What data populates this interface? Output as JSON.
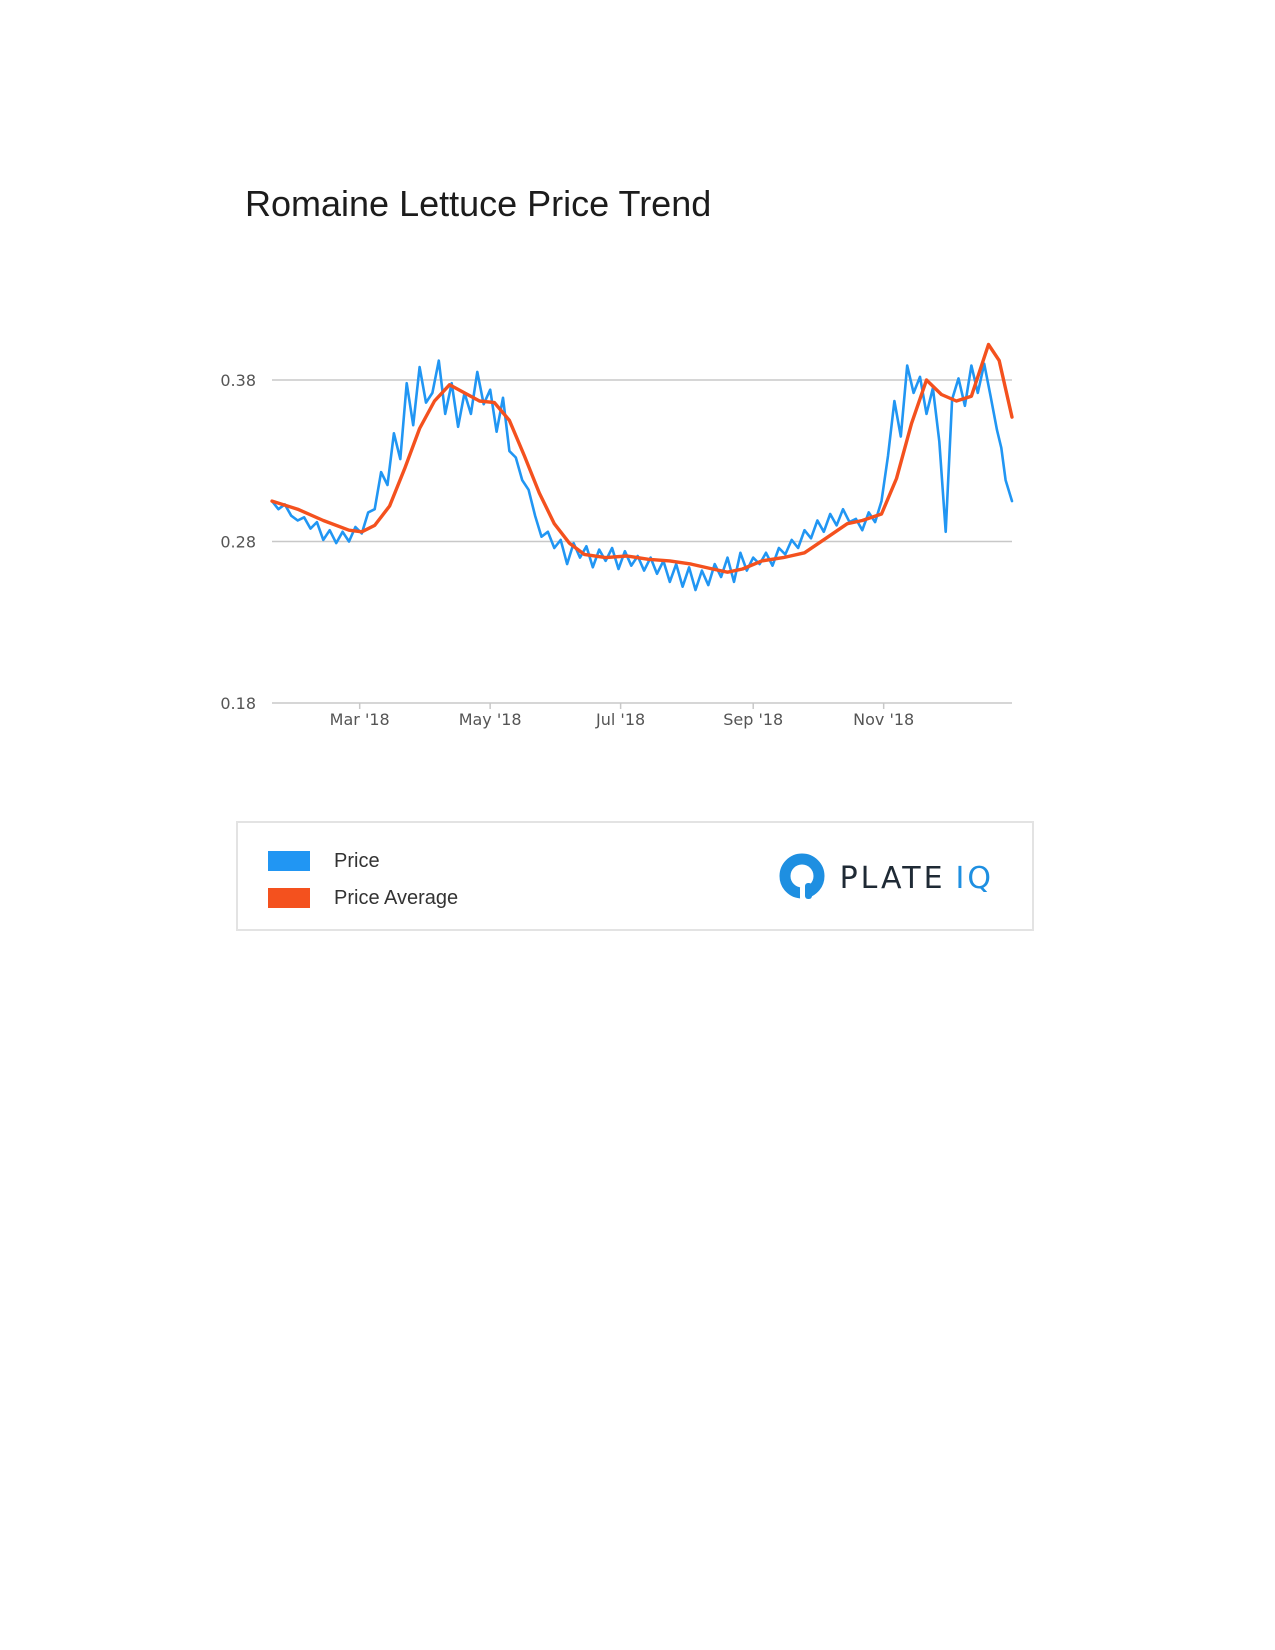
{
  "chart_data": {
    "type": "line",
    "title": "Romaine Lettuce Price Trend",
    "xlabel": "",
    "ylabel": "",
    "x_range": [
      "2018-01-19",
      "2018-12-31"
    ],
    "ylim": [
      0.18,
      0.38
    ],
    "yticks": [
      {
        "label": "0.18",
        "value": 0.18
      },
      {
        "label": "0.28",
        "value": 0.28
      },
      {
        "label": "0.38",
        "value": 0.38
      }
    ],
    "xticks": [
      {
        "label": "Mar '18",
        "date": "2018-03-01"
      },
      {
        "label": "May '18",
        "date": "2018-05-01"
      },
      {
        "label": "Jul '18",
        "date": "2018-07-01"
      },
      {
        "label": "Sep '18",
        "date": "2018-09-01"
      },
      {
        "label": "Nov '18",
        "date": "2018-11-01"
      }
    ],
    "grid": true,
    "legend": "bottom",
    "series": [
      {
        "name": "Price",
        "color": "#2196f3",
        "points": [
          [
            "2018-01-19",
            0.305
          ],
          [
            "2018-01-22",
            0.3
          ],
          [
            "2018-01-25",
            0.303
          ],
          [
            "2018-01-28",
            0.296
          ],
          [
            "2018-01-31",
            0.293
          ],
          [
            "2018-02-03",
            0.295
          ],
          [
            "2018-02-06",
            0.288
          ],
          [
            "2018-02-09",
            0.292
          ],
          [
            "2018-02-12",
            0.281
          ],
          [
            "2018-02-15",
            0.287
          ],
          [
            "2018-02-18",
            0.279
          ],
          [
            "2018-02-21",
            0.286
          ],
          [
            "2018-02-24",
            0.28
          ],
          [
            "2018-02-27",
            0.289
          ],
          [
            "2018-03-02",
            0.285
          ],
          [
            "2018-03-05",
            0.298
          ],
          [
            "2018-03-08",
            0.3
          ],
          [
            "2018-03-11",
            0.323
          ],
          [
            "2018-03-14",
            0.315
          ],
          [
            "2018-03-17",
            0.347
          ],
          [
            "2018-03-20",
            0.331
          ],
          [
            "2018-03-23",
            0.378
          ],
          [
            "2018-03-26",
            0.352
          ],
          [
            "2018-03-29",
            0.388
          ],
          [
            "2018-04-01",
            0.366
          ],
          [
            "2018-04-04",
            0.372
          ],
          [
            "2018-04-07",
            0.392
          ],
          [
            "2018-04-10",
            0.359
          ],
          [
            "2018-04-13",
            0.378
          ],
          [
            "2018-04-16",
            0.351
          ],
          [
            "2018-04-19",
            0.372
          ],
          [
            "2018-04-22",
            0.359
          ],
          [
            "2018-04-25",
            0.385
          ],
          [
            "2018-04-28",
            0.365
          ],
          [
            "2018-05-01",
            0.374
          ],
          [
            "2018-05-04",
            0.348
          ],
          [
            "2018-05-07",
            0.369
          ],
          [
            "2018-05-10",
            0.336
          ],
          [
            "2018-05-13",
            0.332
          ],
          [
            "2018-05-16",
            0.318
          ],
          [
            "2018-05-19",
            0.312
          ],
          [
            "2018-05-22",
            0.296
          ],
          [
            "2018-05-25",
            0.283
          ],
          [
            "2018-05-28",
            0.286
          ],
          [
            "2018-05-31",
            0.276
          ],
          [
            "2018-06-03",
            0.281
          ],
          [
            "2018-06-06",
            0.266
          ],
          [
            "2018-06-09",
            0.279
          ],
          [
            "2018-06-12",
            0.27
          ],
          [
            "2018-06-15",
            0.277
          ],
          [
            "2018-06-18",
            0.264
          ],
          [
            "2018-06-21",
            0.275
          ],
          [
            "2018-06-24",
            0.268
          ],
          [
            "2018-06-27",
            0.276
          ],
          [
            "2018-06-30",
            0.263
          ],
          [
            "2018-07-03",
            0.274
          ],
          [
            "2018-07-06",
            0.265
          ],
          [
            "2018-07-09",
            0.271
          ],
          [
            "2018-07-12",
            0.262
          ],
          [
            "2018-07-15",
            0.27
          ],
          [
            "2018-07-18",
            0.26
          ],
          [
            "2018-07-21",
            0.268
          ],
          [
            "2018-07-24",
            0.255
          ],
          [
            "2018-07-27",
            0.266
          ],
          [
            "2018-07-30",
            0.252
          ],
          [
            "2018-08-02",
            0.264
          ],
          [
            "2018-08-05",
            0.25
          ],
          [
            "2018-08-08",
            0.262
          ],
          [
            "2018-08-11",
            0.253
          ],
          [
            "2018-08-14",
            0.266
          ],
          [
            "2018-08-17",
            0.258
          ],
          [
            "2018-08-20",
            0.27
          ],
          [
            "2018-08-23",
            0.255
          ],
          [
            "2018-08-26",
            0.273
          ],
          [
            "2018-08-29",
            0.262
          ],
          [
            "2018-09-01",
            0.27
          ],
          [
            "2018-09-04",
            0.266
          ],
          [
            "2018-09-07",
            0.273
          ],
          [
            "2018-09-10",
            0.265
          ],
          [
            "2018-09-13",
            0.276
          ],
          [
            "2018-09-16",
            0.272
          ],
          [
            "2018-09-19",
            0.281
          ],
          [
            "2018-09-22",
            0.276
          ],
          [
            "2018-09-25",
            0.287
          ],
          [
            "2018-09-28",
            0.282
          ],
          [
            "2018-10-01",
            0.293
          ],
          [
            "2018-10-04",
            0.286
          ],
          [
            "2018-10-07",
            0.297
          ],
          [
            "2018-10-10",
            0.29
          ],
          [
            "2018-10-13",
            0.3
          ],
          [
            "2018-10-16",
            0.292
          ],
          [
            "2018-10-19",
            0.294
          ],
          [
            "2018-10-22",
            0.287
          ],
          [
            "2018-10-25",
            0.298
          ],
          [
            "2018-10-28",
            0.292
          ],
          [
            "2018-10-31",
            0.305
          ],
          [
            "2018-11-03",
            0.333
          ],
          [
            "2018-11-06",
            0.367
          ],
          [
            "2018-11-09",
            0.345
          ],
          [
            "2018-11-12",
            0.389
          ],
          [
            "2018-11-15",
            0.372
          ],
          [
            "2018-11-18",
            0.382
          ],
          [
            "2018-11-21",
            0.359
          ],
          [
            "2018-11-24",
            0.375
          ],
          [
            "2018-11-27",
            0.342
          ],
          [
            "2018-11-30",
            0.286
          ],
          [
            "2018-12-03",
            0.368
          ],
          [
            "2018-12-06",
            0.381
          ],
          [
            "2018-12-09",
            0.364
          ],
          [
            "2018-12-12",
            0.389
          ],
          [
            "2018-12-15",
            0.372
          ],
          [
            "2018-12-18",
            0.39
          ],
          [
            "2018-12-21",
            0.37
          ],
          [
            "2018-12-24",
            0.349
          ],
          [
            "2018-12-26",
            0.338
          ],
          [
            "2018-12-28",
            0.318
          ],
          [
            "2018-12-31",
            0.305
          ]
        ]
      },
      {
        "name": "Price Average",
        "color": "#f4511e",
        "points": [
          [
            "2018-01-19",
            0.305
          ],
          [
            "2018-01-31",
            0.3
          ],
          [
            "2018-02-12",
            0.293
          ],
          [
            "2018-02-24",
            0.287
          ],
          [
            "2018-03-02",
            0.286
          ],
          [
            "2018-03-08",
            0.29
          ],
          [
            "2018-03-15",
            0.302
          ],
          [
            "2018-03-22",
            0.325
          ],
          [
            "2018-03-29",
            0.35
          ],
          [
            "2018-04-05",
            0.367
          ],
          [
            "2018-04-12",
            0.377
          ],
          [
            "2018-04-19",
            0.372
          ],
          [
            "2018-04-26",
            0.367
          ],
          [
            "2018-05-03",
            0.366
          ],
          [
            "2018-05-10",
            0.355
          ],
          [
            "2018-05-17",
            0.333
          ],
          [
            "2018-05-24",
            0.31
          ],
          [
            "2018-05-31",
            0.291
          ],
          [
            "2018-06-07",
            0.279
          ],
          [
            "2018-06-14",
            0.272
          ],
          [
            "2018-06-24",
            0.27
          ],
          [
            "2018-07-04",
            0.271
          ],
          [
            "2018-07-14",
            0.269
          ],
          [
            "2018-07-24",
            0.268
          ],
          [
            "2018-08-03",
            0.266
          ],
          [
            "2018-08-13",
            0.263
          ],
          [
            "2018-08-20",
            0.261
          ],
          [
            "2018-08-27",
            0.263
          ],
          [
            "2018-09-05",
            0.268
          ],
          [
            "2018-09-15",
            0.27
          ],
          [
            "2018-09-25",
            0.273
          ],
          [
            "2018-10-05",
            0.282
          ],
          [
            "2018-10-15",
            0.291
          ],
          [
            "2018-10-22",
            0.293
          ],
          [
            "2018-10-31",
            0.297
          ],
          [
            "2018-11-07",
            0.319
          ],
          [
            "2018-11-14",
            0.353
          ],
          [
            "2018-11-21",
            0.38
          ],
          [
            "2018-11-28",
            0.371
          ],
          [
            "2018-12-05",
            0.367
          ],
          [
            "2018-12-12",
            0.37
          ],
          [
            "2018-12-20",
            0.402
          ],
          [
            "2018-12-25",
            0.392
          ],
          [
            "2018-12-31",
            0.357
          ]
        ]
      }
    ]
  },
  "legend": {
    "items": [
      {
        "label": "Price",
        "color": "#2196f3"
      },
      {
        "label": "Price Average",
        "color": "#f4511e"
      }
    ]
  },
  "logo": {
    "text_a": "PLATE",
    "text_b": "IQ",
    "icon": "plate-iq-logo-icon"
  }
}
